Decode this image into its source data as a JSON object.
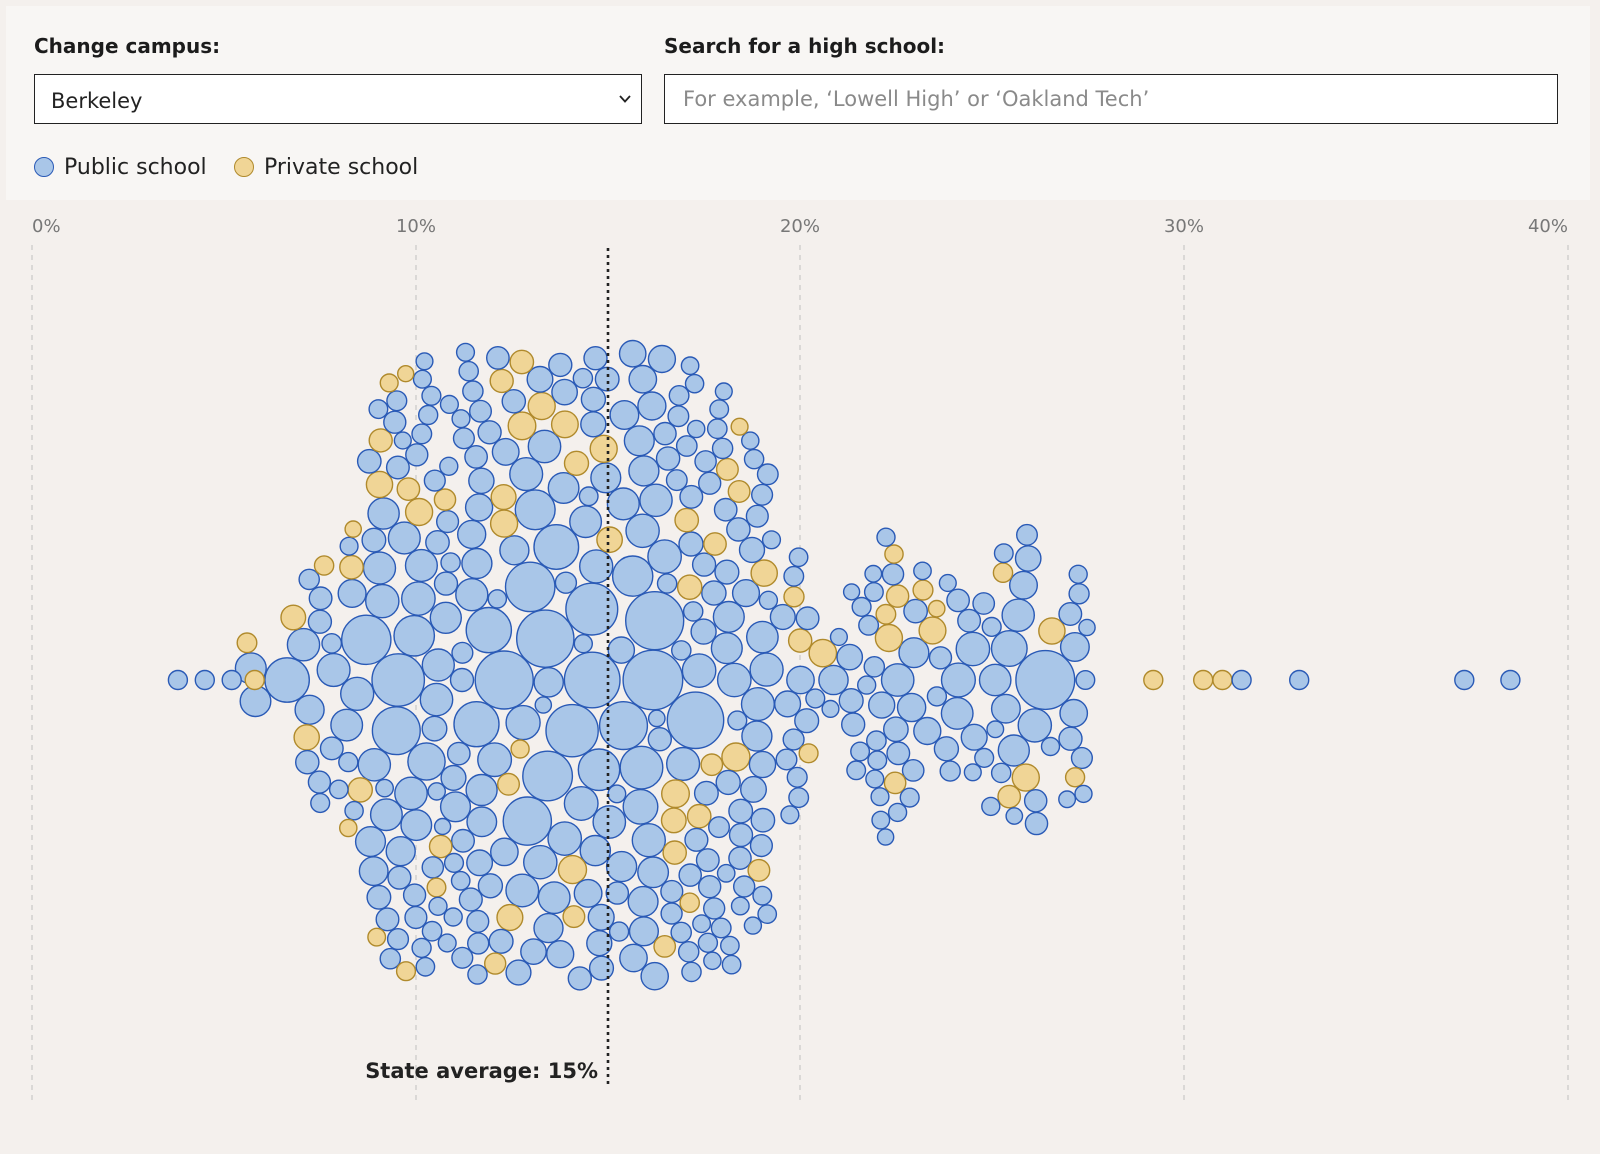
{
  "controls": {
    "campus_label": "Change campus:",
    "campus_value": "Berkeley",
    "search_label": "Search for a high school:",
    "search_placeholder": "For example, ‘Lowell High’ or ‘Oakland Tech’",
    "search_value": ""
  },
  "legend": {
    "public_label": "Public school",
    "private_label": "Private school"
  },
  "colors": {
    "public_fill": "#a9c6e8",
    "public_stroke": "#2a5ab6",
    "private_fill": "#f0d596",
    "private_stroke": "#b08a2c",
    "background": "#f4f0ed",
    "grid": "#c8c8c8"
  },
  "chart_data": {
    "type": "scatter",
    "subtype": "beeswarm",
    "x_axis": {
      "ticks": [
        0,
        10,
        20,
        30,
        40
      ],
      "tick_labels": [
        "0%",
        "10%",
        "20%",
        "30%",
        "40%"
      ],
      "range": [
        0,
        40
      ],
      "grid": "dashed vertical"
    },
    "reference_line": {
      "value": 15,
      "label": "State average: 15%"
    },
    "series": [
      {
        "name": "Public school",
        "count_approx": 520
      },
      {
        "name": "Private school",
        "count_approx": 90
      }
    ],
    "notable_points": [
      {
        "type": "public",
        "value": 3.8
      },
      {
        "type": "public",
        "value": 4.5
      },
      {
        "type": "public",
        "value": 5.2
      },
      {
        "type": "private",
        "value": 5.8
      },
      {
        "type": "private",
        "value": 29.2
      },
      {
        "type": "private",
        "value": 30.5
      },
      {
        "type": "private",
        "value": 31.0
      },
      {
        "type": "public",
        "value": 31.5
      },
      {
        "type": "public",
        "value": 33.0
      },
      {
        "type": "public",
        "value": 37.3
      },
      {
        "type": "public",
        "value": 38.5
      }
    ]
  }
}
